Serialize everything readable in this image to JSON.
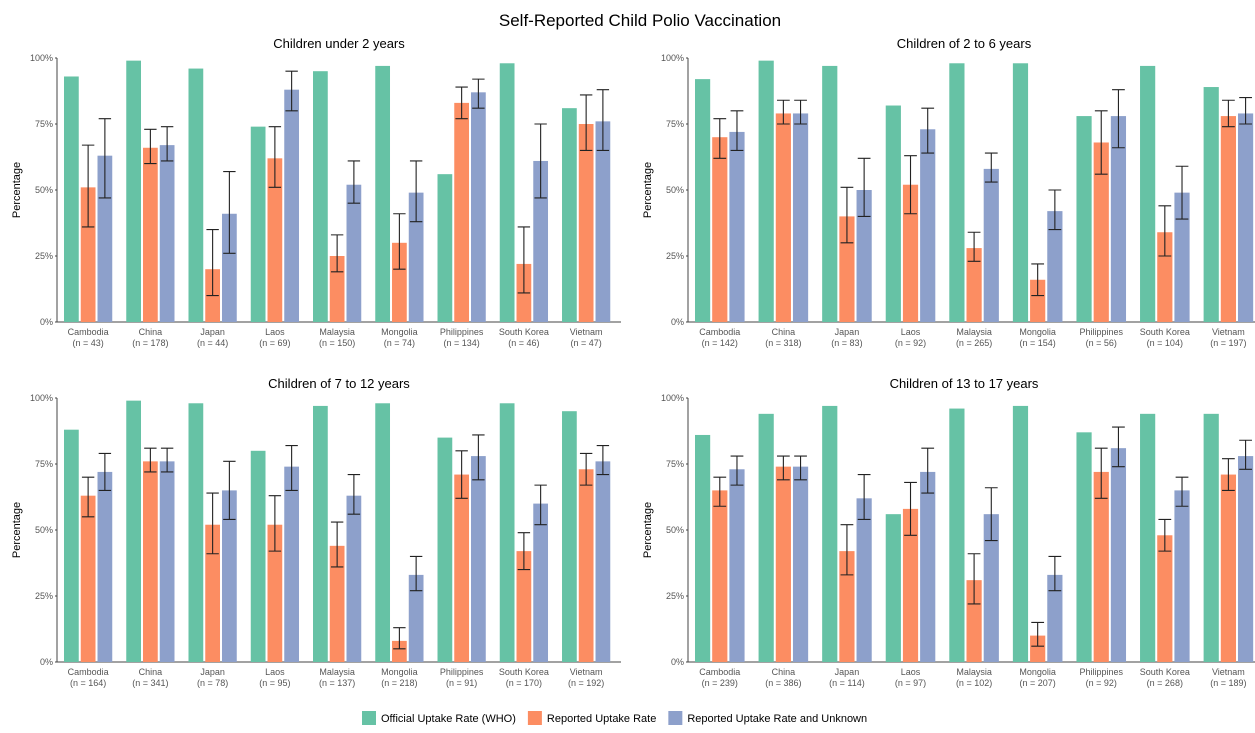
{
  "figure_title": "Self-Reported Child Polio Vaccination",
  "colors": {
    "official": "#66c2a5",
    "reported": "#fc8d62",
    "reported_unknown": "#8da0cb"
  },
  "legend": [
    {
      "key": "official",
      "label": "Official Uptake Rate (WHO)"
    },
    {
      "key": "reported",
      "label": "Reported Uptake Rate"
    },
    {
      "key": "reported_unknown",
      "label": "Reported Uptake Rate and Unknown"
    }
  ],
  "chart_data": [
    {
      "type": "bar",
      "title": "Children under 2 years",
      "ylabel": "Percentage",
      "ylim": [
        0,
        100
      ],
      "yticks": [
        "0%",
        "25%",
        "50%",
        "75%",
        "100%"
      ],
      "categories": [
        "Cambodia",
        "China",
        "Japan",
        "Laos",
        "Malaysia",
        "Mongolia",
        "Philippines",
        "South Korea",
        "Vietnam"
      ],
      "n_labels": [
        "(n = 43)",
        "(n = 178)",
        "(n = 44)",
        "(n = 69)",
        "(n = 150)",
        "(n = 74)",
        "(n = 134)",
        "(n = 46)",
        "(n = 47)"
      ],
      "series": [
        {
          "key": "official",
          "values": [
            93,
            99,
            96,
            74,
            95,
            97,
            56,
            98,
            81
          ]
        },
        {
          "key": "reported",
          "values": [
            51,
            66,
            20,
            62,
            25,
            30,
            83,
            22,
            75
          ],
          "err_low": [
            36,
            60,
            10,
            51,
            19,
            20,
            77,
            11,
            65
          ],
          "err_high": [
            67,
            73,
            35,
            74,
            33,
            41,
            89,
            36,
            86
          ]
        },
        {
          "key": "reported_unknown",
          "values": [
            63,
            67,
            41,
            88,
            52,
            49,
            87,
            61,
            76
          ],
          "err_low": [
            47,
            61,
            26,
            80,
            45,
            38,
            81,
            47,
            65
          ],
          "err_high": [
            77,
            74,
            57,
            95,
            61,
            61,
            92,
            75,
            88
          ]
        }
      ]
    },
    {
      "type": "bar",
      "title": "Children of 2 to 6 years",
      "ylabel": "Percentage",
      "ylim": [
        0,
        100
      ],
      "yticks": [
        "0%",
        "25%",
        "50%",
        "75%",
        "100%"
      ],
      "categories": [
        "Cambodia",
        "China",
        "Japan",
        "Laos",
        "Malaysia",
        "Mongolia",
        "Philippines",
        "South Korea",
        "Vietnam"
      ],
      "n_labels": [
        "(n = 142)",
        "(n = 318)",
        "(n = 83)",
        "(n = 92)",
        "(n = 265)",
        "(n = 154)",
        "(n = 56)",
        "(n = 104)",
        "(n = 197)"
      ],
      "series": [
        {
          "key": "official",
          "values": [
            92,
            99,
            97,
            82,
            98,
            98,
            78,
            97,
            89
          ]
        },
        {
          "key": "reported",
          "values": [
            70,
            79,
            40,
            52,
            28,
            16,
            68,
            34,
            78
          ],
          "err_low": [
            62,
            75,
            30,
            41,
            23,
            10,
            56,
            25,
            74
          ],
          "err_high": [
            77,
            84,
            51,
            63,
            34,
            22,
            80,
            44,
            84
          ]
        },
        {
          "key": "reported_unknown",
          "values": [
            72,
            79,
            50,
            73,
            58,
            42,
            78,
            49,
            79
          ],
          "err_low": [
            65,
            75,
            40,
            64,
            53,
            35,
            66,
            39,
            75
          ],
          "err_high": [
            80,
            84,
            62,
            81,
            64,
            50,
            88,
            59,
            85
          ]
        }
      ]
    },
    {
      "type": "bar",
      "title": "Children of 7 to 12 years",
      "ylabel": "Percentage",
      "ylim": [
        0,
        100
      ],
      "yticks": [
        "0%",
        "25%",
        "50%",
        "75%",
        "100%"
      ],
      "categories": [
        "Cambodia",
        "China",
        "Japan",
        "Laos",
        "Malaysia",
        "Mongolia",
        "Philippines",
        "South Korea",
        "Vietnam"
      ],
      "n_labels": [
        "(n = 164)",
        "(n = 341)",
        "(n = 78)",
        "(n = 95)",
        "(n = 137)",
        "(n = 218)",
        "(n = 91)",
        "(n = 170)",
        "(n = 192)"
      ],
      "series": [
        {
          "key": "official",
          "values": [
            88,
            99,
            98,
            80,
            97,
            98,
            85,
            98,
            95
          ]
        },
        {
          "key": "reported",
          "values": [
            63,
            76,
            52,
            52,
            44,
            8,
            71,
            42,
            73
          ],
          "err_low": [
            55,
            72,
            41,
            42,
            36,
            5,
            62,
            35,
            67
          ],
          "err_high": [
            70,
            81,
            64,
            63,
            53,
            13,
            80,
            49,
            79
          ]
        },
        {
          "key": "reported_unknown",
          "values": [
            72,
            76,
            65,
            74,
            63,
            33,
            78,
            60,
            76
          ],
          "err_low": [
            65,
            72,
            54,
            65,
            56,
            27,
            69,
            52,
            71
          ],
          "err_high": [
            79,
            81,
            76,
            82,
            71,
            40,
            86,
            67,
            82
          ]
        }
      ]
    },
    {
      "type": "bar",
      "title": "Children of 13 to 17 years",
      "ylabel": "Percentage",
      "ylim": [
        0,
        100
      ],
      "yticks": [
        "0%",
        "25%",
        "50%",
        "75%",
        "100%"
      ],
      "categories": [
        "Cambodia",
        "China",
        "Japan",
        "Laos",
        "Malaysia",
        "Mongolia",
        "Philippines",
        "South Korea",
        "Vietnam"
      ],
      "n_labels": [
        "(n = 239)",
        "(n = 386)",
        "(n = 114)",
        "(n = 97)",
        "(n = 102)",
        "(n = 207)",
        "(n = 92)",
        "(n = 268)",
        "(n = 189)"
      ],
      "series": [
        {
          "key": "official",
          "values": [
            86,
            94,
            97,
            56,
            96,
            97,
            87,
            94,
            94
          ]
        },
        {
          "key": "reported",
          "values": [
            65,
            74,
            42,
            58,
            31,
            10,
            72,
            48,
            71
          ],
          "err_low": [
            59,
            69,
            33,
            48,
            22,
            6,
            62,
            42,
            65
          ],
          "err_high": [
            70,
            78,
            52,
            68,
            41,
            15,
            81,
            54,
            77
          ]
        },
        {
          "key": "reported_unknown",
          "values": [
            73,
            74,
            62,
            72,
            56,
            33,
            81,
            65,
            78
          ],
          "err_low": [
            67,
            69,
            54,
            64,
            46,
            27,
            74,
            59,
            73
          ],
          "err_high": [
            78,
            78,
            71,
            81,
            66,
            40,
            89,
            70,
            84
          ]
        }
      ]
    }
  ]
}
